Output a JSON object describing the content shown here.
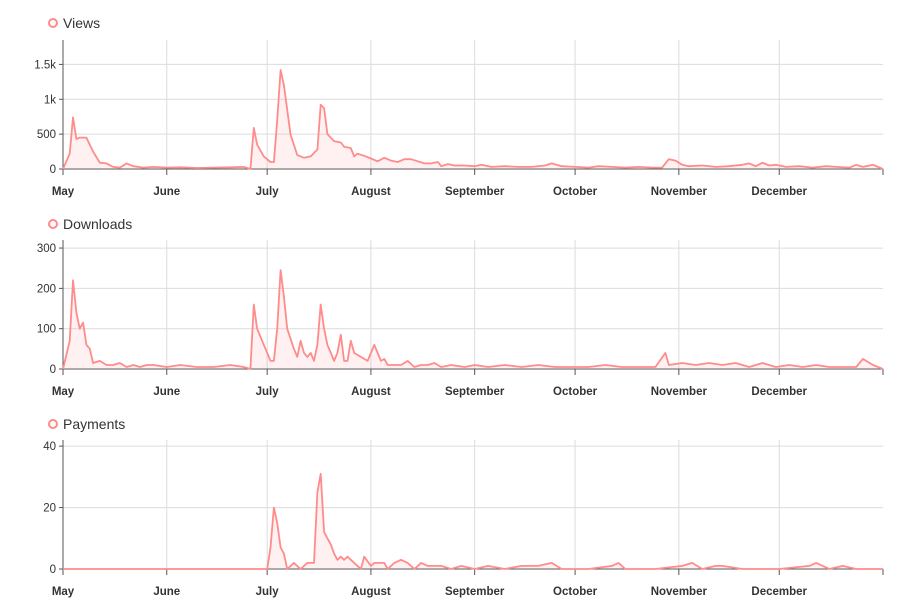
{
  "chart_data": [
    {
      "type": "area",
      "series": [
        {
          "name": "Views",
          "color": "#ff8b8b"
        }
      ],
      "x_ticks": [
        "May",
        "June",
        "July",
        "August",
        "September",
        "October",
        "November",
        "December"
      ],
      "y_ticks": [
        0,
        500,
        1000,
        1500
      ],
      "y_tick_labels": [
        "0",
        "500",
        "1k",
        "1.5k"
      ],
      "ylim": [
        0,
        1850
      ],
      "x_range": [
        "2023-05-01",
        "2024-01-01"
      ],
      "grid": true,
      "legend": "top-left",
      "points": [
        [
          "2023-05-01",
          0
        ],
        [
          "2023-05-03",
          220
        ],
        [
          "2023-05-04",
          740
        ],
        [
          "2023-05-05",
          430
        ],
        [
          "2023-05-06",
          450
        ],
        [
          "2023-05-08",
          450
        ],
        [
          "2023-05-10",
          250
        ],
        [
          "2023-05-12",
          90
        ],
        [
          "2023-05-14",
          80
        ],
        [
          "2023-05-16",
          30
        ],
        [
          "2023-05-18",
          20
        ],
        [
          "2023-05-20",
          80
        ],
        [
          "2023-05-22",
          40
        ],
        [
          "2023-05-25",
          20
        ],
        [
          "2023-05-28",
          30
        ],
        [
          "2023-06-01",
          20
        ],
        [
          "2023-06-05",
          25
        ],
        [
          "2023-06-10",
          15
        ],
        [
          "2023-06-15",
          20
        ],
        [
          "2023-06-20",
          25
        ],
        [
          "2023-06-24",
          30
        ],
        [
          "2023-06-26",
          0
        ],
        [
          "2023-06-27",
          590
        ],
        [
          "2023-06-28",
          350
        ],
        [
          "2023-06-30",
          180
        ],
        [
          "2023-07-02",
          100
        ],
        [
          "2023-07-03",
          100
        ],
        [
          "2023-07-04",
          700
        ],
        [
          "2023-07-05",
          1420
        ],
        [
          "2023-07-06",
          1200
        ],
        [
          "2023-07-08",
          490
        ],
        [
          "2023-07-10",
          200
        ],
        [
          "2023-07-12",
          160
        ],
        [
          "2023-07-14",
          180
        ],
        [
          "2023-07-16",
          280
        ],
        [
          "2023-07-17",
          920
        ],
        [
          "2023-07-18",
          870
        ],
        [
          "2023-07-19",
          500
        ],
        [
          "2023-07-21",
          400
        ],
        [
          "2023-07-23",
          380
        ],
        [
          "2023-07-24",
          320
        ],
        [
          "2023-07-26",
          300
        ],
        [
          "2023-07-27",
          180
        ],
        [
          "2023-07-28",
          220
        ],
        [
          "2023-07-30",
          190
        ],
        [
          "2023-08-01",
          150
        ],
        [
          "2023-08-03",
          110
        ],
        [
          "2023-08-05",
          160
        ],
        [
          "2023-08-07",
          120
        ],
        [
          "2023-08-09",
          100
        ],
        [
          "2023-08-11",
          140
        ],
        [
          "2023-08-13",
          140
        ],
        [
          "2023-08-15",
          110
        ],
        [
          "2023-08-17",
          80
        ],
        [
          "2023-08-19",
          80
        ],
        [
          "2023-08-21",
          100
        ],
        [
          "2023-08-22",
          40
        ],
        [
          "2023-08-24",
          70
        ],
        [
          "2023-08-26",
          50
        ],
        [
          "2023-08-29",
          50
        ],
        [
          "2023-09-01",
          40
        ],
        [
          "2023-09-03",
          60
        ],
        [
          "2023-09-06",
          30
        ],
        [
          "2023-09-10",
          40
        ],
        [
          "2023-09-14",
          30
        ],
        [
          "2023-09-18",
          30
        ],
        [
          "2023-09-22",
          50
        ],
        [
          "2023-09-24",
          80
        ],
        [
          "2023-09-27",
          40
        ],
        [
          "2023-10-01",
          30
        ],
        [
          "2023-10-05",
          20
        ],
        [
          "2023-10-08",
          40
        ],
        [
          "2023-10-12",
          30
        ],
        [
          "2023-10-16",
          20
        ],
        [
          "2023-10-20",
          30
        ],
        [
          "2023-10-24",
          20
        ],
        [
          "2023-10-27",
          20
        ],
        [
          "2023-10-29",
          140
        ],
        [
          "2023-10-31",
          120
        ],
        [
          "2023-11-02",
          60
        ],
        [
          "2023-11-04",
          40
        ],
        [
          "2023-11-08",
          50
        ],
        [
          "2023-11-12",
          30
        ],
        [
          "2023-11-16",
          40
        ],
        [
          "2023-11-20",
          60
        ],
        [
          "2023-11-22",
          80
        ],
        [
          "2023-11-24",
          40
        ],
        [
          "2023-11-26",
          90
        ],
        [
          "2023-11-28",
          50
        ],
        [
          "2023-11-30",
          60
        ],
        [
          "2023-12-03",
          30
        ],
        [
          "2023-12-07",
          40
        ],
        [
          "2023-12-11",
          20
        ],
        [
          "2023-12-15",
          40
        ],
        [
          "2023-12-18",
          30
        ],
        [
          "2023-12-22",
          20
        ],
        [
          "2023-12-24",
          60
        ],
        [
          "2023-12-26",
          30
        ],
        [
          "2023-12-29",
          60
        ],
        [
          "2024-01-01",
          0
        ]
      ]
    },
    {
      "type": "area",
      "series": [
        {
          "name": "Downloads",
          "color": "#ff8b8b"
        }
      ],
      "x_ticks": [
        "May",
        "June",
        "July",
        "August",
        "September",
        "October",
        "November",
        "December"
      ],
      "y_ticks": [
        0,
        100,
        200,
        300
      ],
      "y_tick_labels": [
        "0",
        "100",
        "200",
        "300"
      ],
      "ylim": [
        0,
        320
      ],
      "x_range": [
        "2023-05-01",
        "2024-01-01"
      ],
      "grid": true,
      "legend": "top-left",
      "points": [
        [
          "2023-05-01",
          0
        ],
        [
          "2023-05-03",
          70
        ],
        [
          "2023-05-04",
          220
        ],
        [
          "2023-05-05",
          140
        ],
        [
          "2023-05-06",
          100
        ],
        [
          "2023-05-07",
          115
        ],
        [
          "2023-05-08",
          60
        ],
        [
          "2023-05-09",
          50
        ],
        [
          "2023-05-10",
          15
        ],
        [
          "2023-05-12",
          20
        ],
        [
          "2023-05-14",
          10
        ],
        [
          "2023-05-16",
          10
        ],
        [
          "2023-05-18",
          15
        ],
        [
          "2023-05-20",
          5
        ],
        [
          "2023-05-22",
          10
        ],
        [
          "2023-05-24",
          5
        ],
        [
          "2023-05-26",
          10
        ],
        [
          "2023-05-28",
          10
        ],
        [
          "2023-06-01",
          5
        ],
        [
          "2023-06-05",
          10
        ],
        [
          "2023-06-10",
          5
        ],
        [
          "2023-06-15",
          5
        ],
        [
          "2023-06-20",
          10
        ],
        [
          "2023-06-24",
          5
        ],
        [
          "2023-06-26",
          0
        ],
        [
          "2023-06-27",
          160
        ],
        [
          "2023-06-28",
          100
        ],
        [
          "2023-06-30",
          60
        ],
        [
          "2023-07-02",
          20
        ],
        [
          "2023-07-03",
          20
        ],
        [
          "2023-07-04",
          100
        ],
        [
          "2023-07-05",
          245
        ],
        [
          "2023-07-06",
          180
        ],
        [
          "2023-07-07",
          100
        ],
        [
          "2023-07-09",
          50
        ],
        [
          "2023-07-10",
          30
        ],
        [
          "2023-07-11",
          70
        ],
        [
          "2023-07-12",
          40
        ],
        [
          "2023-07-13",
          30
        ],
        [
          "2023-07-14",
          40
        ],
        [
          "2023-07-15",
          20
        ],
        [
          "2023-07-16",
          60
        ],
        [
          "2023-07-17",
          160
        ],
        [
          "2023-07-18",
          100
        ],
        [
          "2023-07-19",
          60
        ],
        [
          "2023-07-20",
          40
        ],
        [
          "2023-07-21",
          20
        ],
        [
          "2023-07-22",
          40
        ],
        [
          "2023-07-23",
          85
        ],
        [
          "2023-07-24",
          20
        ],
        [
          "2023-07-25",
          20
        ],
        [
          "2023-07-26",
          70
        ],
        [
          "2023-07-27",
          40
        ],
        [
          "2023-07-29",
          30
        ],
        [
          "2023-07-31",
          20
        ],
        [
          "2023-08-02",
          60
        ],
        [
          "2023-08-03",
          40
        ],
        [
          "2023-08-04",
          20
        ],
        [
          "2023-08-05",
          25
        ],
        [
          "2023-08-06",
          10
        ],
        [
          "2023-08-08",
          10
        ],
        [
          "2023-08-10",
          10
        ],
        [
          "2023-08-12",
          20
        ],
        [
          "2023-08-14",
          5
        ],
        [
          "2023-08-16",
          10
        ],
        [
          "2023-08-18",
          10
        ],
        [
          "2023-08-20",
          15
        ],
        [
          "2023-08-22",
          5
        ],
        [
          "2023-08-25",
          10
        ],
        [
          "2023-08-29",
          5
        ],
        [
          "2023-09-01",
          10
        ],
        [
          "2023-09-05",
          5
        ],
        [
          "2023-09-10",
          10
        ],
        [
          "2023-09-15",
          5
        ],
        [
          "2023-09-20",
          10
        ],
        [
          "2023-09-25",
          5
        ],
        [
          "2023-10-01",
          5
        ],
        [
          "2023-10-05",
          5
        ],
        [
          "2023-10-10",
          10
        ],
        [
          "2023-10-15",
          5
        ],
        [
          "2023-10-20",
          5
        ],
        [
          "2023-10-25",
          5
        ],
        [
          "2023-10-28",
          40
        ],
        [
          "2023-10-29",
          10
        ],
        [
          "2023-11-02",
          15
        ],
        [
          "2023-11-06",
          10
        ],
        [
          "2023-11-10",
          15
        ],
        [
          "2023-11-14",
          10
        ],
        [
          "2023-11-18",
          15
        ],
        [
          "2023-11-22",
          5
        ],
        [
          "2023-11-26",
          15
        ],
        [
          "2023-11-30",
          5
        ],
        [
          "2023-12-04",
          10
        ],
        [
          "2023-12-08",
          5
        ],
        [
          "2023-12-12",
          10
        ],
        [
          "2023-12-16",
          5
        ],
        [
          "2023-12-20",
          5
        ],
        [
          "2023-12-24",
          5
        ],
        [
          "2023-12-26",
          25
        ],
        [
          "2023-12-29",
          10
        ],
        [
          "2024-01-01",
          0
        ]
      ]
    },
    {
      "type": "area",
      "series": [
        {
          "name": "Payments",
          "color": "#ff8b8b"
        }
      ],
      "x_ticks": [
        "May",
        "June",
        "July",
        "August",
        "September",
        "October",
        "November",
        "December"
      ],
      "y_ticks": [
        0,
        20,
        40
      ],
      "y_tick_labels": [
        "0",
        "20",
        "40"
      ],
      "ylim": [
        0,
        42
      ],
      "x_range": [
        "2023-05-01",
        "2024-01-01"
      ],
      "grid": true,
      "legend": "top-left",
      "points": [
        [
          "2023-05-01",
          0
        ],
        [
          "2023-06-25",
          0
        ],
        [
          "2023-07-01",
          0
        ],
        [
          "2023-07-02",
          7
        ],
        [
          "2023-07-03",
          20
        ],
        [
          "2023-07-04",
          15
        ],
        [
          "2023-07-05",
          7
        ],
        [
          "2023-07-06",
          5
        ],
        [
          "2023-07-07",
          0
        ],
        [
          "2023-07-08",
          1
        ],
        [
          "2023-07-09",
          2
        ],
        [
          "2023-07-11",
          0
        ],
        [
          "2023-07-13",
          2
        ],
        [
          "2023-07-15",
          2
        ],
        [
          "2023-07-16",
          25
        ],
        [
          "2023-07-17",
          31
        ],
        [
          "2023-07-18",
          12
        ],
        [
          "2023-07-19",
          10
        ],
        [
          "2023-07-20",
          8
        ],
        [
          "2023-07-21",
          5
        ],
        [
          "2023-07-22",
          3
        ],
        [
          "2023-07-23",
          4
        ],
        [
          "2023-07-24",
          3
        ],
        [
          "2023-07-25",
          4
        ],
        [
          "2023-07-26",
          3
        ],
        [
          "2023-07-28",
          1
        ],
        [
          "2023-07-29",
          0
        ],
        [
          "2023-07-30",
          4
        ],
        [
          "2023-08-01",
          1
        ],
        [
          "2023-08-02",
          2
        ],
        [
          "2023-08-03",
          2
        ],
        [
          "2023-08-05",
          2
        ],
        [
          "2023-08-06",
          0
        ],
        [
          "2023-08-08",
          2
        ],
        [
          "2023-08-10",
          3
        ],
        [
          "2023-08-12",
          2
        ],
        [
          "2023-08-14",
          0
        ],
        [
          "2023-08-16",
          2
        ],
        [
          "2023-08-18",
          1
        ],
        [
          "2023-08-20",
          1
        ],
        [
          "2023-08-22",
          1
        ],
        [
          "2023-08-25",
          0
        ],
        [
          "2023-08-28",
          1
        ],
        [
          "2023-09-01",
          0
        ],
        [
          "2023-09-05",
          1
        ],
        [
          "2023-09-10",
          0
        ],
        [
          "2023-09-15",
          1
        ],
        [
          "2023-09-20",
          1
        ],
        [
          "2023-09-24",
          2
        ],
        [
          "2023-09-27",
          0
        ],
        [
          "2023-10-05",
          0
        ],
        [
          "2023-10-12",
          1
        ],
        [
          "2023-10-14",
          2
        ],
        [
          "2023-10-16",
          0
        ],
        [
          "2023-10-25",
          0
        ],
        [
          "2023-11-02",
          1
        ],
        [
          "2023-11-05",
          2
        ],
        [
          "2023-11-08",
          0
        ],
        [
          "2023-11-12",
          1
        ],
        [
          "2023-11-14",
          1
        ],
        [
          "2023-11-20",
          0
        ],
        [
          "2023-12-01",
          0
        ],
        [
          "2023-12-10",
          1
        ],
        [
          "2023-12-12",
          2
        ],
        [
          "2023-12-14",
          1
        ],
        [
          "2023-12-16",
          0
        ],
        [
          "2023-12-20",
          1
        ],
        [
          "2023-12-24",
          0
        ],
        [
          "2024-01-01",
          0
        ]
      ]
    }
  ]
}
